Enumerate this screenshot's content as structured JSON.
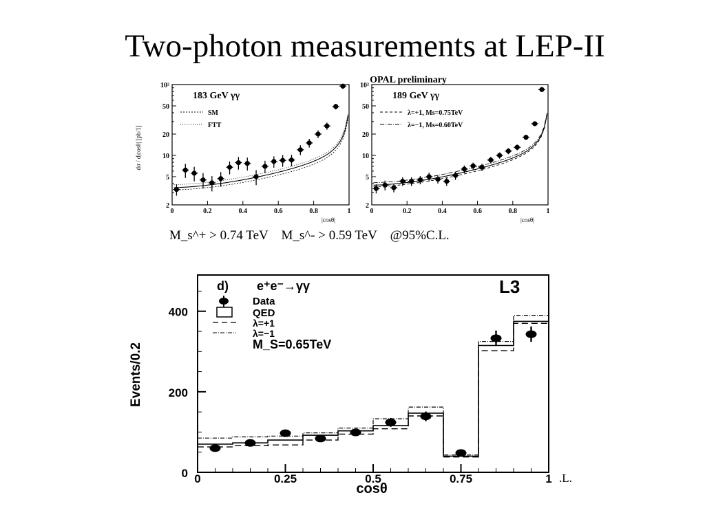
{
  "title": "Two-photon measurements at LEP-II",
  "limits": {
    "plus": "M_s^+ > 0.74 TeV",
    "minus": "M_s^- > 0.59 TeV",
    "cl": "@95%C.L."
  },
  "cl_fragment": ".L.",
  "chart_data": [
    {
      "type": "scatter",
      "header": "OPAL preliminary",
      "panel_title": "183 GeV γγ",
      "ylabel": "dσ / d|cosθ| [pb/1]",
      "xlabel": "|cosθ|",
      "log_y": true,
      "xlim": [
        0,
        1
      ],
      "ylim": [
        2,
        100
      ],
      "xticks": [
        "0",
        "0.2",
        "0.4",
        "0.6",
        "0.8",
        "1"
      ],
      "yticks": [
        "2",
        "5",
        "10",
        "20",
        "50",
        "10²"
      ],
      "legend": [
        "SM",
        "FTT"
      ],
      "legend_position": "top-left",
      "x": [
        0.025,
        0.075,
        0.125,
        0.175,
        0.225,
        0.275,
        0.325,
        0.375,
        0.425,
        0.475,
        0.525,
        0.575,
        0.625,
        0.675,
        0.725,
        0.775,
        0.825,
        0.875,
        0.925,
        0.965
      ],
      "y": [
        3.3,
        6.2,
        5.6,
        4.5,
        4.1,
        4.7,
        6.8,
        7.9,
        7.7,
        5.0,
        7.0,
        8.2,
        8.5,
        8.6,
        12,
        15,
        20,
        26,
        49,
        95
      ],
      "yerr": [
        0.6,
        1.4,
        1.3,
        1.1,
        1.0,
        1.1,
        1.4,
        1.6,
        1.6,
        1.2,
        1.4,
        1.5,
        1.6,
        1.6,
        1.9,
        2.1,
        2.5,
        3.0,
        4.5,
        8
      ]
    },
    {
      "type": "scatter",
      "panel_title": "189 GeV γγ",
      "xlabel": "|cosθ|",
      "log_y": true,
      "xlim": [
        0,
        1
      ],
      "ylim": [
        2,
        100
      ],
      "xticks": [
        "0",
        "0.2",
        "0.4",
        "0.6",
        "0.8",
        "1"
      ],
      "yticks": [
        "2",
        "5",
        "10",
        "20",
        "50",
        "10²"
      ],
      "legend": [
        "λ=+1, Ms=0.75TeV",
        "λ=−1, Ms=0.60TeV"
      ],
      "legend_position": "top-left",
      "x": [
        0.025,
        0.075,
        0.125,
        0.175,
        0.225,
        0.275,
        0.325,
        0.375,
        0.425,
        0.475,
        0.525,
        0.575,
        0.625,
        0.675,
        0.725,
        0.775,
        0.825,
        0.875,
        0.925,
        0.965
      ],
      "y": [
        3.4,
        3.8,
        3.5,
        4.3,
        4.3,
        4.5,
        5.0,
        4.6,
        4.3,
        5.2,
        6.4,
        7.1,
        6.8,
        8.6,
        10.0,
        11.5,
        13.0,
        18,
        28,
        85
      ],
      "yerr": [
        0.5,
        0.6,
        0.5,
        0.6,
        0.6,
        0.6,
        0.7,
        0.6,
        0.6,
        0.7,
        0.8,
        0.8,
        0.8,
        0.9,
        1.0,
        1.1,
        1.2,
        1.5,
        2.0,
        6
      ]
    },
    {
      "type": "bar",
      "panel_label": "d)",
      "process": "e⁺e⁻→γγ",
      "experiment": "L3",
      "xlabel": "cosθ",
      "ylabel": "Events/0.2",
      "xlim": [
        0,
        1
      ],
      "ylim": [
        0,
        490
      ],
      "xticks": [
        "0",
        "0.25",
        "0.5",
        "0.75",
        "1"
      ],
      "yticks": [
        "0",
        "200",
        "400"
      ],
      "legend": [
        "Data",
        "QED",
        "λ=+1",
        "λ=−1"
      ],
      "legend_extra": "M_S=0.65TeV",
      "legend_position": "top-left",
      "bin_edges": [
        0,
        0.1,
        0.2,
        0.3,
        0.4,
        0.5,
        0.6,
        0.7,
        0.8,
        0.9,
        1.0
      ],
      "series": [
        {
          "name": "Data",
          "x": [
            0.05,
            0.15,
            0.25,
            0.35,
            0.45,
            0.55,
            0.65,
            0.75,
            0.85,
            0.95
          ],
          "values": [
            60,
            73,
            97,
            84,
            99,
            124,
            139,
            48,
            333,
            343
          ],
          "yerr": [
            7,
            8,
            9,
            9,
            9,
            11,
            12,
            7,
            19,
            19
          ]
        },
        {
          "name": "QED",
          "values": [
            70,
            73,
            80,
            92,
            103,
            116,
            147,
            40,
            315,
            375
          ]
        },
        {
          "name": "λ=+1",
          "values": [
            63,
            66,
            68,
            80,
            95,
            108,
            140,
            38,
            302,
            370
          ]
        },
        {
          "name": "λ=−1",
          "values": [
            85,
            88,
            90,
            98,
            110,
            133,
            162,
            43,
            325,
            390
          ]
        }
      ]
    }
  ]
}
